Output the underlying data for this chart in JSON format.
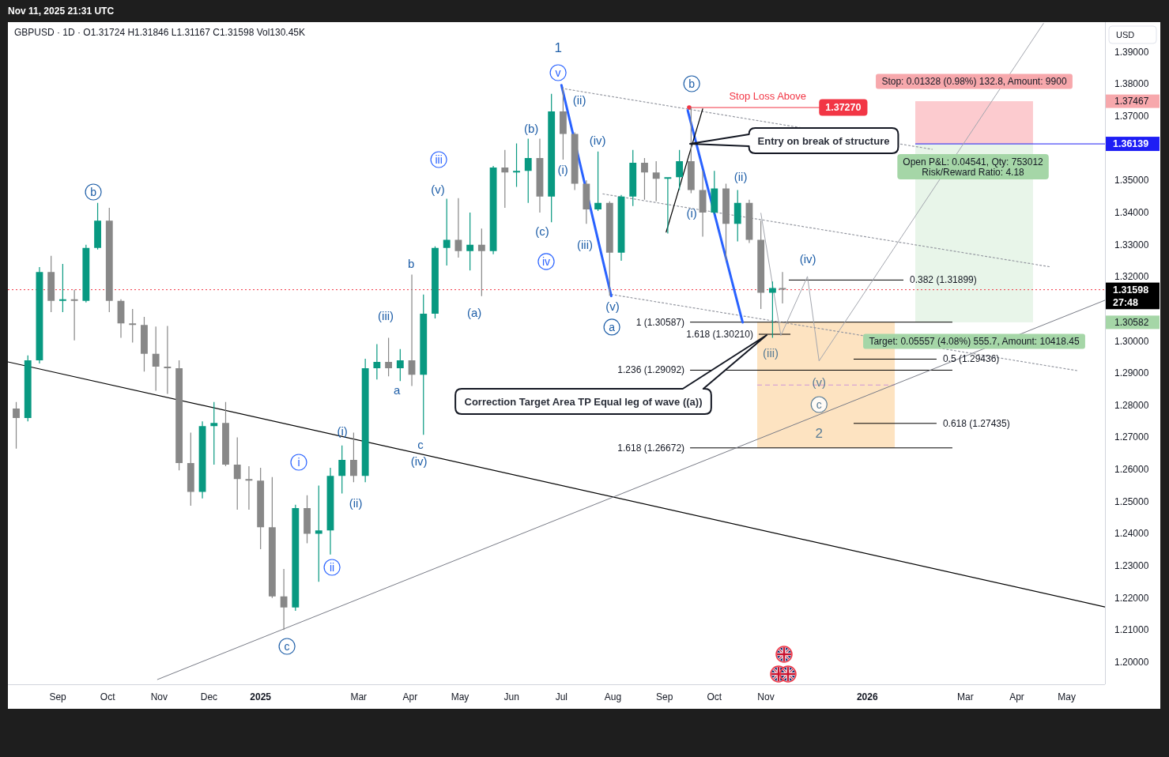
{
  "chart_data": {
    "type": "candlestick",
    "title": "GBPUSD · 1D · O1.31724 H1.31846 L1.31167 C1.31598 Vol130.45K",
    "subtitle": "Nov 11, 2025 21:31 UTC",
    "ylabel": "USD",
    "x": [
      "2024-08-07",
      "2024-08-14",
      "2024-08-21",
      "2024-08-28",
      "2024-09-04",
      "2024-09-11",
      "2024-09-18",
      "2024-09-25",
      "2024-10-02",
      "2024-10-09",
      "2024-10-16",
      "2024-10-23",
      "2024-10-30",
      "2024-11-06",
      "2024-11-13",
      "2024-11-20",
      "2024-11-27",
      "2024-12-04",
      "2024-12-11",
      "2024-12-18",
      "2024-12-25",
      "2025-01-01",
      "2025-01-08",
      "2025-01-15",
      "2025-01-22",
      "2025-01-29",
      "2025-02-05",
      "2025-02-12",
      "2025-02-19",
      "2025-02-26",
      "2025-03-05",
      "2025-03-12",
      "2025-03-19",
      "2025-03-26",
      "2025-04-02",
      "2025-04-09",
      "2025-04-16",
      "2025-04-23",
      "2025-04-30",
      "2025-05-07",
      "2025-05-14",
      "2025-05-21",
      "2025-05-28",
      "2025-06-04",
      "2025-06-11",
      "2025-06-18",
      "2025-06-25",
      "2025-07-02",
      "2025-07-09",
      "2025-07-16",
      "2025-07-23",
      "2025-07-30",
      "2025-08-06",
      "2025-08-13",
      "2025-08-20",
      "2025-08-27",
      "2025-09-03",
      "2025-09-10",
      "2025-09-17",
      "2025-09-24",
      "2025-10-01",
      "2025-10-08",
      "2025-10-15",
      "2025-10-22",
      "2025-10-29",
      "2025-11-05",
      "2025-11-11"
    ],
    "ohlc": [
      [
        1.279,
        1.281,
        1.2665,
        1.276
      ],
      [
        1.276,
        1.2955,
        1.275,
        1.294
      ],
      [
        1.294,
        1.323,
        1.293,
        1.3215
      ],
      [
        1.3215,
        1.3265,
        1.309,
        1.3125
      ],
      [
        1.3125,
        1.324,
        1.309,
        1.313
      ],
      [
        1.313,
        1.316,
        1.3002,
        1.3125
      ],
      [
        1.3125,
        1.33,
        1.312,
        1.329
      ],
      [
        1.329,
        1.343,
        1.3285,
        1.3375
      ],
      [
        1.3375,
        1.3415,
        1.309,
        1.3125
      ],
      [
        1.3125,
        1.313,
        1.301,
        1.3055
      ],
      [
        1.3055,
        1.31,
        1.2995,
        1.305
      ],
      [
        1.305,
        1.3075,
        1.2905,
        1.296
      ],
      [
        1.296,
        1.3045,
        1.2845,
        1.292
      ],
      [
        1.292,
        1.3047,
        1.2835,
        1.2915
      ],
      [
        1.2915,
        1.294,
        1.2597,
        1.262
      ],
      [
        1.262,
        1.2715,
        1.2487,
        1.253
      ],
      [
        1.253,
        1.275,
        1.251,
        1.2735
      ],
      [
        1.2735,
        1.281,
        1.2615,
        1.2745
      ],
      [
        1.2745,
        1.281,
        1.261,
        1.2615
      ],
      [
        1.2615,
        1.27,
        1.2475,
        1.257
      ],
      [
        1.257,
        1.261,
        1.2475,
        1.2565
      ],
      [
        1.2565,
        1.2605,
        1.2352,
        1.242
      ],
      [
        1.242,
        1.2576,
        1.22,
        1.2205
      ],
      [
        1.2205,
        1.229,
        1.21,
        1.217
      ],
      [
        1.217,
        1.249,
        1.216,
        1.248
      ],
      [
        1.248,
        1.252,
        1.237,
        1.24
      ],
      [
        1.24,
        1.255,
        1.225,
        1.241
      ],
      [
        1.241,
        1.2605,
        1.2335,
        1.258
      ],
      [
        1.258,
        1.2675,
        1.2525,
        1.263
      ],
      [
        1.263,
        1.2715,
        1.256,
        1.258
      ],
      [
        1.258,
        1.2945,
        1.256,
        1.2915
      ],
      [
        1.2915,
        1.299,
        1.288,
        1.2935
      ],
      [
        1.2935,
        1.301,
        1.289,
        1.2915
      ],
      [
        1.2915,
        1.2975,
        1.2875,
        1.294
      ],
      [
        1.294,
        1.3207,
        1.286,
        1.2895
      ],
      [
        1.2895,
        1.3145,
        1.2708,
        1.3085
      ],
      [
        1.3085,
        1.3295,
        1.307,
        1.329
      ],
      [
        1.329,
        1.3443,
        1.3235,
        1.3315
      ],
      [
        1.3315,
        1.3445,
        1.326,
        1.328
      ],
      [
        1.328,
        1.34,
        1.322,
        1.33
      ],
      [
        1.33,
        1.335,
        1.314,
        1.328
      ],
      [
        1.328,
        1.3545,
        1.327,
        1.354
      ],
      [
        1.354,
        1.3595,
        1.3415,
        1.3525
      ],
      [
        1.3525,
        1.3615,
        1.348,
        1.353
      ],
      [
        1.353,
        1.363,
        1.343,
        1.357
      ],
      [
        1.357,
        1.363,
        1.34,
        1.345
      ],
      [
        1.345,
        1.377,
        1.337,
        1.3715
      ],
      [
        1.3715,
        1.379,
        1.3565,
        1.3645
      ],
      [
        1.3645,
        1.365,
        1.347,
        1.349
      ],
      [
        1.349,
        1.35,
        1.3365,
        1.341
      ],
      [
        1.341,
        1.359,
        1.3405,
        1.343
      ],
      [
        1.343,
        1.3435,
        1.3141,
        1.3275
      ],
      [
        1.3275,
        1.3455,
        1.325,
        1.345
      ],
      [
        1.345,
        1.3595,
        1.342,
        1.3555
      ],
      [
        1.3555,
        1.357,
        1.344,
        1.3525
      ],
      [
        1.3525,
        1.356,
        1.3435,
        1.3505
      ],
      [
        1.3505,
        1.351,
        1.3335,
        1.351
      ],
      [
        1.351,
        1.3595,
        1.347,
        1.356
      ],
      [
        1.356,
        1.3727,
        1.346,
        1.347
      ],
      [
        1.347,
        1.353,
        1.3325,
        1.34
      ],
      [
        1.34,
        1.353,
        1.3395,
        1.3475
      ],
      [
        1.3475,
        1.349,
        1.325,
        1.3365
      ],
      [
        1.3365,
        1.347,
        1.331,
        1.343
      ],
      [
        1.343,
        1.344,
        1.3305,
        1.3315
      ],
      [
        1.3315,
        1.3375,
        1.31,
        1.315
      ],
      [
        1.315,
        1.3185,
        1.301,
        1.3165
      ],
      [
        1.3165,
        1.3215,
        1.3117,
        1.31598
      ]
    ],
    "colors": [
      "#888888",
      "#089981",
      "#089981",
      "#888888",
      "#089981",
      "#888888",
      "#089981",
      "#089981",
      "#888888",
      "#888888",
      "#888888",
      "#888888",
      "#888888",
      "#888888",
      "#888888",
      "#888888",
      "#089981",
      "#089981",
      "#888888",
      "#888888",
      "#888888",
      "#888888",
      "#888888",
      "#888888",
      "#089981",
      "#888888",
      "#089981",
      "#089981",
      "#089981",
      "#888888",
      "#089981",
      "#089981",
      "#888888",
      "#089981",
      "#888888",
      "#089981",
      "#089981",
      "#089981",
      "#888888",
      "#089981",
      "#888888",
      "#089981",
      "#888888",
      "#089981",
      "#089981",
      "#888888",
      "#089981",
      "#888888",
      "#888888",
      "#888888",
      "#089981",
      "#888888",
      "#089981",
      "#089981",
      "#888888",
      "#888888",
      "#089981",
      "#089981",
      "#888888",
      "#888888",
      "#089981",
      "#888888",
      "#089981",
      "#888888",
      "#888888",
      "#089981",
      "#888888"
    ],
    "xlim": [
      "2024-08-02",
      "2026-05-24"
    ],
    "ylim": [
      1.1931,
      1.3993
    ],
    "xticks": [
      {
        "value": "2024-09-01",
        "label": "Sep"
      },
      {
        "value": "2024-10-01",
        "label": "Oct"
      },
      {
        "value": "2024-11-01",
        "label": "Nov"
      },
      {
        "value": "2024-12-01",
        "label": "Dec"
      },
      {
        "value": "2025-01-01",
        "label": "2025"
      },
      {
        "value": "2025-03-01",
        "label": "Mar"
      },
      {
        "value": "2025-04-01",
        "label": "Apr"
      },
      {
        "value": "2025-05-01",
        "label": "May"
      },
      {
        "value": "2025-06-01",
        "label": "Jun"
      },
      {
        "value": "2025-07-01",
        "label": "Jul"
      },
      {
        "value": "2025-08-01",
        "label": "Aug"
      },
      {
        "value": "2025-09-01",
        "label": "Sep"
      },
      {
        "value": "2025-10-01",
        "label": "Oct"
      },
      {
        "value": "2025-11-01",
        "label": "Nov"
      },
      {
        "value": "2026-01-01",
        "label": "2026"
      },
      {
        "value": "2026-03-01",
        "label": "Mar"
      },
      {
        "value": "2026-04-01",
        "label": "Apr"
      },
      {
        "value": "2026-05-01",
        "label": "May"
      }
    ],
    "yticks": [
      {
        "value": 1.39,
        "label": "1.39000"
      },
      {
        "value": 1.38,
        "label": "1.38000"
      },
      {
        "value": 1.37467,
        "label": "1.37467"
      },
      {
        "value": 1.37,
        "label": "1.37000"
      },
      {
        "value": 1.35,
        "label": "1.35000"
      },
      {
        "value": 1.34,
        "label": "1.34000"
      },
      {
        "value": 1.33,
        "label": "1.33000"
      },
      {
        "value": 1.32,
        "label": "1.32000"
      },
      {
        "value": 1.30582,
        "label": "1.30582"
      },
      {
        "value": 1.3,
        "label": "1.30000"
      },
      {
        "value": 1.29,
        "label": "1.29000"
      },
      {
        "value": 1.28,
        "label": "1.28000"
      },
      {
        "value": 1.27,
        "label": "1.27000"
      },
      {
        "value": 1.26,
        "label": "1.26000"
      },
      {
        "value": 1.25,
        "label": "1.25000"
      },
      {
        "value": 1.24,
        "label": "1.24000"
      },
      {
        "value": 1.23,
        "label": "1.23000"
      },
      {
        "value": 1.22,
        "label": "1.22000"
      },
      {
        "value": 1.21,
        "label": "1.21000"
      },
      {
        "value": 1.2,
        "label": "1.20000"
      }
    ],
    "series": [
      {
        "type": "line",
        "x": [
          "2024-08-02",
          "2026-05-24"
        ],
        "values": [
          1.2935,
          1.2172
        ],
        "color": "#000000"
      },
      {
        "type": "line",
        "x": [
          "2024-10-31",
          "2026-05-24"
        ],
        "values": [
          1.1946,
          1.3127
        ],
        "color": "#787b86"
      },
      {
        "type": "line",
        "x": [
          "2025-10-29",
          "2025-11-10",
          "2025-11-26",
          "2025-12-03",
          "2026-04-17"
        ],
        "values": [
          1.3398,
          1.3017,
          1.3201,
          1.2938,
          1.3989
        ],
        "color": "#a3a6ae"
      },
      {
        "type": "line",
        "x": [
          "2025-07-01",
          "2026-02-09"
        ],
        "values": [
          1.3787,
          1.3597
        ],
        "color": "#9598a1",
        "line_style": "dotted"
      },
      {
        "type": "line",
        "x": [
          "2025-07-26",
          "2026-04-21"
        ],
        "values": [
          1.3458,
          1.3231
        ],
        "color": "#9598a1",
        "line_style": "dotted"
      },
      {
        "type": "line",
        "x": [
          "2025-07-31",
          "2026-05-07"
        ],
        "values": [
          1.3145,
          1.2908
        ],
        "color": "#9598a1",
        "line_style": "dotted"
      },
      {
        "type": "line",
        "x": [
          "2025-07-01",
          "2025-07-31"
        ],
        "values": [
          1.3797,
          1.314
        ],
        "color": "#2962ff"
      },
      {
        "type": "line",
        "x": [
          "2025-09-15",
          "2025-10-18"
        ],
        "values": [
          1.3718,
          1.3058
        ],
        "color": "#2962ff"
      },
      {
        "type": "line",
        "x": [
          "2025-09-02",
          "2025-09-24"
        ],
        "values": [
          1.3339,
          1.3723
        ],
        "color": "#000000"
      }
    ],
    "ref_lines": [
      {
        "axis": "y",
        "value": 1.3727,
        "label": "Stop Loss Above",
        "color": "#f23645"
      },
      {
        "axis": "y",
        "value": 1.36139,
        "label": "1.36139",
        "color": "#1e1ef5"
      },
      {
        "axis": "y",
        "value": 1.31598,
        "label": "1.31598",
        "color": "#f23645",
        "line_style": "dotted"
      },
      {
        "axis": "y",
        "value": 1.30587,
        "label": "1 (1.30587)",
        "color": "#000000"
      },
      {
        "axis": "y",
        "value": 1.3021,
        "label": "1.618 (1.30210)",
        "color": "#000000"
      },
      {
        "axis": "y",
        "value": 1.29092,
        "label": "1.236 (1.29092)",
        "color": "#000000"
      },
      {
        "axis": "y",
        "value": 1.26672,
        "label": "1.618 (1.26672)",
        "color": "#000000"
      },
      {
        "axis": "y",
        "value": 1.31899,
        "label": "0.382 (1.31899)",
        "color": "#000000"
      },
      {
        "axis": "y",
        "value": 1.29436,
        "label": "0.5 (1.29436)",
        "color": "#000000"
      },
      {
        "axis": "y",
        "value": 1.27435,
        "label": "0.618 (1.27435)",
        "color": "#000000"
      },
      {
        "axis": "y",
        "value": 1.2863,
        "color": "#ce93d8",
        "line_style": "dashed"
      }
    ],
    "bands": [
      {
        "axis": "y",
        "from": 1.26672,
        "to": 1.30587,
        "color": "#fde3c1"
      },
      {
        "axis": "y",
        "from": 1.36139,
        "to": 1.37467,
        "label": "Stop: 0.01328 (0.98%) 132.8, Amount: 9900",
        "color": "#fccbcf"
      },
      {
        "axis": "y",
        "from": 1.30582,
        "to": 1.36139,
        "label": "Target: 0.05557 (4.08%) 555.7, Amount: 10418.45",
        "color": "#e8f5e9"
      }
    ],
    "annotations": [
      {
        "text": "b",
        "x": "2024-09-25",
        "y": 1.343
      },
      {
        "text": "c",
        "x": "2025-01-15",
        "y": 1.21
      },
      "i",
      {
        "text": "ii",
        "x": "2025-02-12",
        "y": 1.2335
      },
      {
        "text": "(i)",
        "x": "2025-02-19",
        "y": 1.2675
      },
      {
        "text": "(ii)",
        "x": "2025-02-26",
        "y": 1.256
      },
      {
        "text": "(iii)",
        "x": "2025-03-19",
        "y": 1.301
      },
      {
        "text": "a",
        "x": "2025-03-26",
        "y": 1.2875
      },
      {
        "text": "b",
        "x": "2025-04-02",
        "y": 1.3207
      },
      {
        "text": "c",
        "x": "2025-04-09",
        "y": 1.2708
      },
      {
        "text": "(iv)",
        "x": "2025-04-09",
        "y": 1.2708
      },
      {
        "text": "iii",
        "x": "2025-04-23",
        "y": 1.3443
      },
      {
        "text": "(v)",
        "x": "2025-04-23",
        "y": 1.3443
      },
      {
        "text": "(a)",
        "x": "2025-05-14",
        "y": 1.314
      },
      {
        "text": "(b)",
        "x": "2025-06-11",
        "y": 1.363
      },
      {
        "text": "(c)",
        "x": "2025-06-18",
        "y": 1.34
      },
      "iv",
      {
        "text": "1",
        "x": "2025-07-02",
        "y": 1.379
      },
      {
        "text": "v",
        "x": "2025-07-02",
        "y": 1.379
      },
      {
        "text": "(ii)",
        "x": "2025-07-09",
        "y": 1.365
      },
      {
        "text": "(i)",
        "x": "2025-07-02",
        "y": 1.3565
      },
      {
        "text": "(iv)",
        "x": "2025-07-23",
        "y": 1.359
      },
      {
        "text": "(iii)",
        "x": "2025-07-16",
        "y": 1.3365
      },
      {
        "text": "(v)",
        "x": "2025-07-30",
        "y": 1.3141
      },
      {
        "text": "a",
        "x": "2025-07-30",
        "y": 1.3141
      },
      {
        "text": "b",
        "x": "2025-09-17",
        "y": 1.3727
      },
      {
        "text": "(i)",
        "x": "2025-09-17",
        "y": 1.346
      },
      {
        "text": "(ii)",
        "x": "2025-10-15",
        "y": 1.347
      },
      {
        "text": "(iii)",
        "x": "2025-11-05",
        "y": 1.301
      },
      {
        "text": "(iv)",
        "x": "2025-11-26",
        "y": 1.3201
      },
      {
        "text": "(v)",
        "x": "2025-12-03",
        "y": 1.2871
      },
      {
        "text": "c",
        "x": "2025-12-03",
        "y": 1.2802
      },
      {
        "text": "2",
        "x": "2025-12-03",
        "y": 1.2771
      },
      {
        "text": "1.37270",
        "x": "2025-12-03",
        "y": 1.3727
      },
      "Entry on break of structure",
      "Correction Target Area TP Equal leg of wave ((a))",
      {
        "text": "Open P&L: 0.04541, Qty: 753012\nRisk/Reward Ratio: 4.18",
        "x": "2026-03-05",
        "y": 1.36139
      },
      {
        "text": "27:48",
        "x": "2026-05-24",
        "y": 1.312
      }
    ]
  }
}
